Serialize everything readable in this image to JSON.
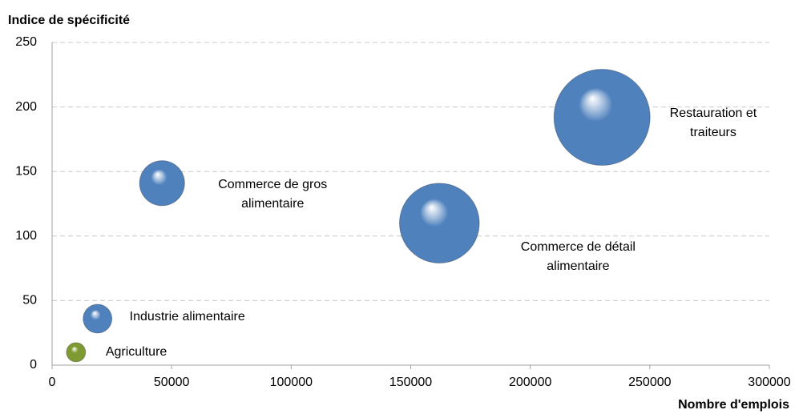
{
  "chart_data": {
    "type": "bubble",
    "y_label": "Indice de spécificité",
    "x_label": "Nombre d'emplois",
    "labels": [
      "Agriculture",
      "Industrie alimentaire",
      "Commerce de gros\nalimentaire",
      "Commerce de détail\nalimentaire",
      "Restauration et\ntraiteurs"
    ],
    "x": [
      10000,
      19000,
      46000,
      162000,
      230000
    ],
    "values": [
      10,
      36,
      141,
      110,
      192
    ],
    "sizes": [
      4,
      9,
      22,
      69,
      100
    ],
    "colors": [
      "#7f9a32",
      "#4f81bd",
      "#4f81bd",
      "#4f81bd",
      "#4f81bd"
    ],
    "xlim": [
      0,
      300000
    ],
    "xticks": [
      0,
      50000,
      100000,
      150000,
      200000,
      250000,
      300000
    ],
    "ylim": [
      0,
      250
    ],
    "yticks": [
      0,
      50,
      100,
      150,
      200,
      250
    ],
    "grid": true
  }
}
